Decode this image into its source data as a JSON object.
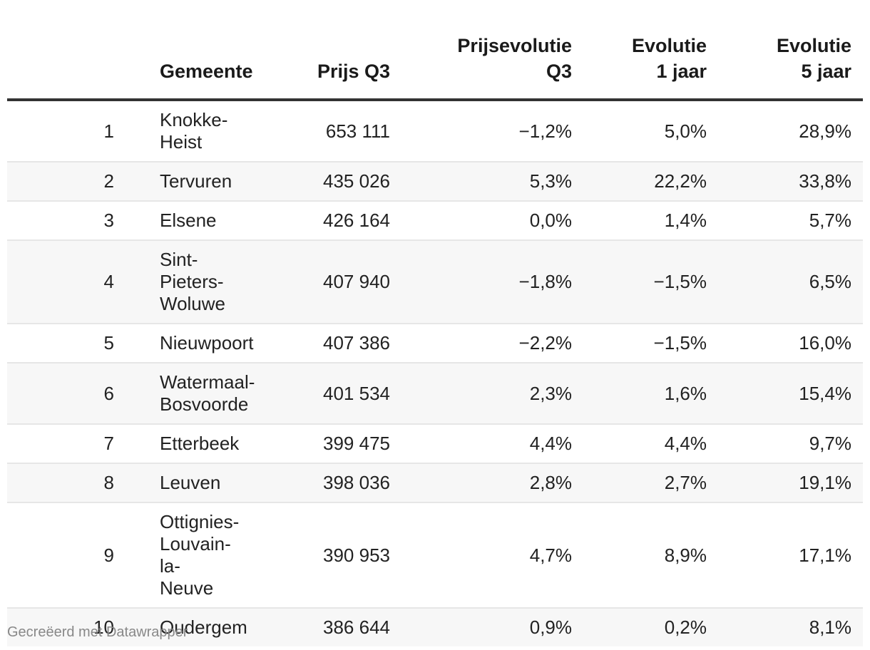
{
  "chart_data": {
    "type": "table",
    "columns": [
      "",
      "Gemeente",
      "Prijs Q3",
      "Prijsevolutie\nQ3",
      "Evolutie\n1 jaar",
      "Evolutie\n5 jaar"
    ],
    "rows": [
      {
        "rank": "1",
        "gemeente": "Knokke-\nHeist",
        "prijs": "653 111",
        "evq3": "−1,2%",
        "ev1": "5,0%",
        "ev5": "28,9%"
      },
      {
        "rank": "2",
        "gemeente": "Tervuren",
        "prijs": "435 026",
        "evq3": "5,3%",
        "ev1": "22,2%",
        "ev5": "33,8%"
      },
      {
        "rank": "3",
        "gemeente": "Elsene",
        "prijs": "426 164",
        "evq3": "0,0%",
        "ev1": "1,4%",
        "ev5": "5,7%"
      },
      {
        "rank": "4",
        "gemeente": "Sint-Pieters-\nWoluwe",
        "prijs": "407 940",
        "evq3": "−1,8%",
        "ev1": "−1,5%",
        "ev5": "6,5%"
      },
      {
        "rank": "5",
        "gemeente": "Nieuwpoort",
        "prijs": "407 386",
        "evq3": "−2,2%",
        "ev1": "−1,5%",
        "ev5": "16,0%"
      },
      {
        "rank": "6",
        "gemeente": "Watermaal-\nBosvoorde",
        "prijs": "401 534",
        "evq3": "2,3%",
        "ev1": "1,6%",
        "ev5": "15,4%"
      },
      {
        "rank": "7",
        "gemeente": "Etterbeek",
        "prijs": "399 475",
        "evq3": "4,4%",
        "ev1": "4,4%",
        "ev5": "9,7%"
      },
      {
        "rank": "8",
        "gemeente": "Leuven",
        "prijs": "398 036",
        "evq3": "2,8%",
        "ev1": "2,7%",
        "ev5": "19,1%"
      },
      {
        "rank": "9",
        "gemeente": "Ottignies-\nLouvain-la-\nNeuve",
        "prijs": "390 953",
        "evq3": "4,7%",
        "ev1": "8,9%",
        "ev5": "17,1%"
      },
      {
        "rank": "10",
        "gemeente": "Oudergem",
        "prijs": "386 644",
        "evq3": "0,9%",
        "ev1": "0,2%",
        "ev5": "8,1%"
      }
    ]
  },
  "footer": "Gecreëerd met Datawrapper"
}
